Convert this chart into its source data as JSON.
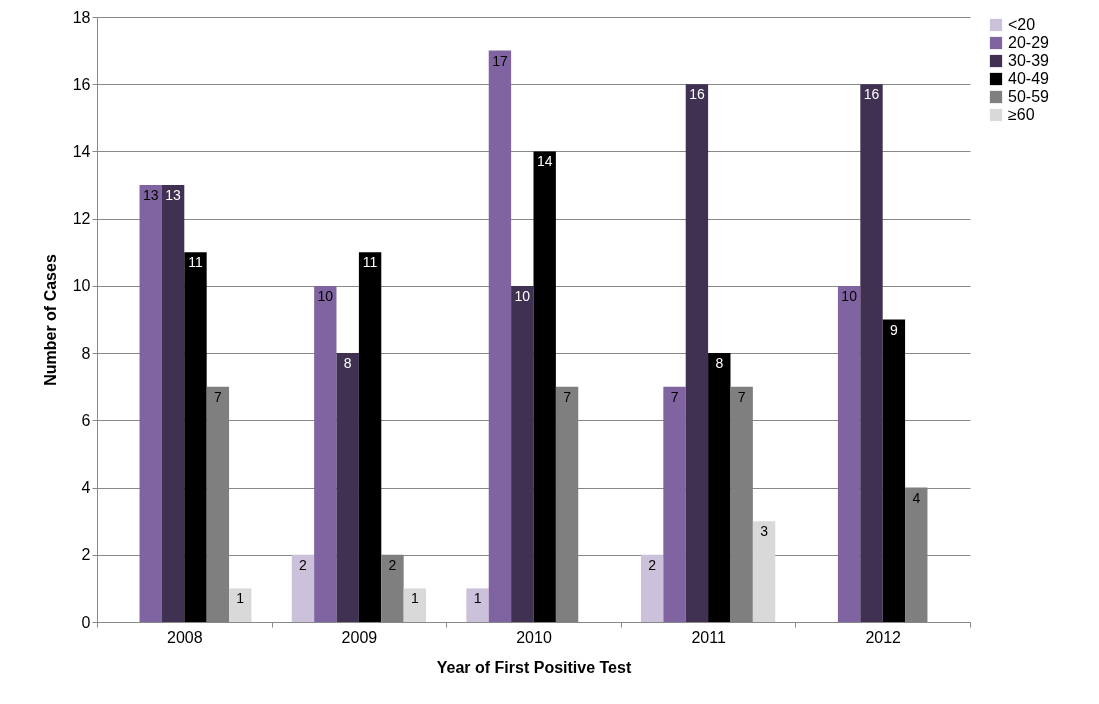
{
  "chart_data": {
    "type": "bar",
    "xlabel": "Year of First Positive Test",
    "ylabel": "Number of Cases",
    "categories": [
      "2008",
      "2009",
      "2010",
      "2011",
      "2012"
    ],
    "series": [
      {
        "name": "<20",
        "color": "#ccc1da",
        "values": [
          null,
          2,
          1,
          2,
          null
        ]
      },
      {
        "name": "20-29",
        "color": "#8064a2",
        "values": [
          13,
          10,
          17,
          7,
          10
        ]
      },
      {
        "name": "30-39",
        "color": "#403152",
        "values": [
          13,
          8,
          10,
          16,
          16
        ]
      },
      {
        "name": "40-49",
        "color": "#000000",
        "values": [
          11,
          11,
          14,
          8,
          9
        ]
      },
      {
        "name": "50-59",
        "color": "#7f7f7f",
        "values": [
          7,
          2,
          7,
          7,
          4
        ]
      },
      {
        "name": "≥60",
        "color": "#d9d9d9",
        "values": [
          1,
          1,
          null,
          3,
          null
        ]
      }
    ],
    "ylim": [
      0,
      18
    ],
    "yticks": [
      0,
      2,
      4,
      6,
      8,
      10,
      12,
      14,
      16,
      18
    ],
    "grid": "y",
    "legend": "right",
    "data_labels": true
  }
}
